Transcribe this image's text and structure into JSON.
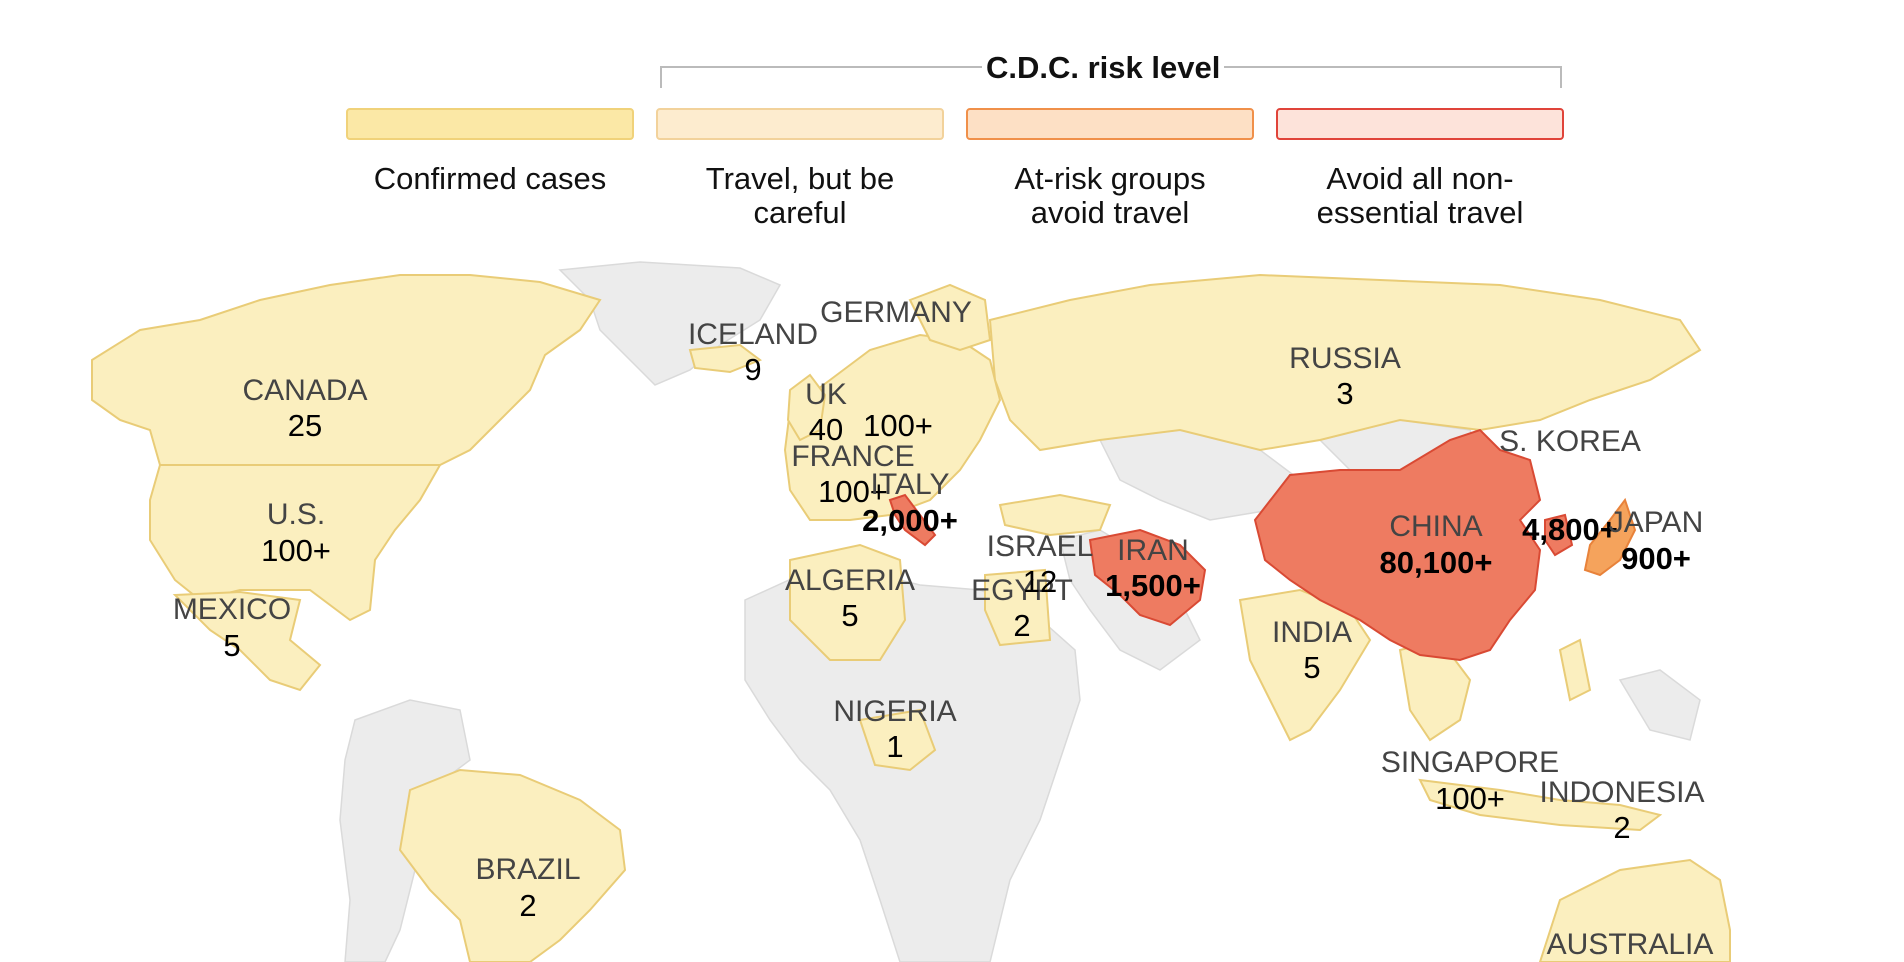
{
  "legend": {
    "heading": "C.D.C. risk level",
    "items": [
      {
        "label": "Confirmed cases",
        "color": "#fbe8a6",
        "border": "#f0d27a"
      },
      {
        "label": "Travel, but be careful",
        "color": "#fdeccf",
        "border": "#f2d29b"
      },
      {
        "label": "At-risk groups avoid travel",
        "color": "#fde0c5",
        "border": "#f0904a"
      },
      {
        "label": "Avoid all non-essential travel",
        "color": "#fde3da",
        "border": "#e0443a"
      }
    ]
  },
  "colors": {
    "confirmed_fill": "#fbefbf",
    "confirmed_border": "#e9cc77",
    "no_cases_fill": "#ececec",
    "no_cases_border": "#d8d8d8",
    "high_risk_fill": "#ee7b61",
    "high_risk_border": "#d94a34",
    "medium_risk_fill": "#f5a35c"
  },
  "countries": [
    {
      "name": "CANADA",
      "count": "25"
    },
    {
      "name": "U.S.",
      "count": "100+"
    },
    {
      "name": "MEXICO",
      "count": "5"
    },
    {
      "name": "BRAZIL",
      "count": "2"
    },
    {
      "name": "ICELAND",
      "count": "9"
    },
    {
      "name": "GERMANY",
      "count": "100+"
    },
    {
      "name": "UK",
      "count": "40"
    },
    {
      "name": "FRANCE",
      "count": "100+"
    },
    {
      "name": "ITALY",
      "count": "2,000+"
    },
    {
      "name": "ALGERIA",
      "count": "5"
    },
    {
      "name": "NIGERIA",
      "count": "1"
    },
    {
      "name": "EGYPT",
      "count": "2"
    },
    {
      "name": "ISRAEL",
      "count": "12"
    },
    {
      "name": "IRAN",
      "count": "1,500+"
    },
    {
      "name": "RUSSIA",
      "count": "3"
    },
    {
      "name": "INDIA",
      "count": "5"
    },
    {
      "name": "CHINA",
      "count": "80,100+"
    },
    {
      "name": "S. KOREA",
      "count": "4,800+"
    },
    {
      "name": "JAPAN",
      "count": "900+"
    },
    {
      "name": "SINGAPORE",
      "count": "100+"
    },
    {
      "name": "INDONESIA",
      "count": "2"
    },
    {
      "name": "AUSTRALIA",
      "count": ""
    }
  ]
}
